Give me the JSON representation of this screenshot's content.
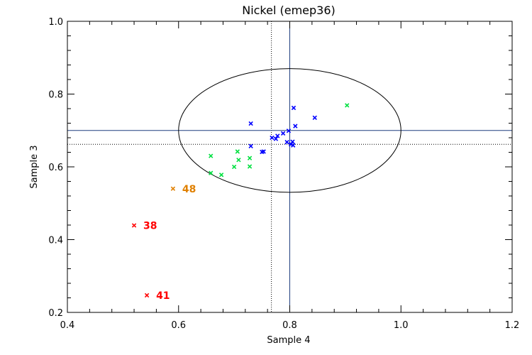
{
  "chart_data": {
    "type": "scatter",
    "title": "Nickel (emep36)",
    "xlabel": "Sample 4",
    "ylabel": "Sample 3",
    "xlim": [
      0.4,
      1.2
    ],
    "ylim": [
      0.2,
      1.0
    ],
    "xticks": [
      "0.4",
      "0.6",
      "0.8",
      "1.0",
      "1.2"
    ],
    "yticks": [
      "0.2",
      "0.4",
      "0.6",
      "0.8",
      "1.0"
    ],
    "xtick_values": [
      0.4,
      0.6,
      0.8,
      1.0,
      1.2
    ],
    "ytick_values": [
      0.2,
      0.4,
      0.6,
      0.8,
      1.0
    ],
    "reference_lines": {
      "solid": {
        "x": 0.8,
        "y": 0.7,
        "color": "#1f3f7f"
      },
      "dotted": {
        "x": 0.767,
        "y": 0.662,
        "color": "#000000"
      }
    },
    "ellipse": {
      "cx": 0.8,
      "cy": 0.7,
      "rx": 0.2,
      "ry": 0.17,
      "color": "#000000"
    },
    "series": [
      {
        "name": "blue",
        "color": "#0000ff",
        "points": [
          [
            0.73,
            0.719
          ],
          [
            0.807,
            0.762
          ],
          [
            0.845,
            0.735
          ],
          [
            0.81,
            0.712
          ],
          [
            0.768,
            0.68
          ],
          [
            0.775,
            0.677
          ],
          [
            0.778,
            0.685
          ],
          [
            0.788,
            0.692
          ],
          [
            0.798,
            0.699
          ],
          [
            0.795,
            0.668
          ],
          [
            0.802,
            0.662
          ],
          [
            0.806,
            0.659
          ],
          [
            0.805,
            0.669
          ],
          [
            0.73,
            0.657
          ],
          [
            0.75,
            0.641
          ],
          [
            0.753,
            0.642
          ]
        ]
      },
      {
        "name": "green",
        "color": "#00e040",
        "points": [
          [
            0.903,
            0.769
          ],
          [
            0.658,
            0.63
          ],
          [
            0.706,
            0.642
          ],
          [
            0.708,
            0.619
          ],
          [
            0.728,
            0.624
          ],
          [
            0.728,
            0.601
          ],
          [
            0.7,
            0.6
          ],
          [
            0.658,
            0.583
          ],
          [
            0.677,
            0.578
          ]
        ]
      },
      {
        "name": "orange",
        "color": "#e08000",
        "points": [
          [
            0.59,
            0.54,
            "48"
          ]
        ]
      },
      {
        "name": "red",
        "color": "#ff0000",
        "points": [
          [
            0.52,
            0.439,
            "38"
          ],
          [
            0.543,
            0.247,
            "41"
          ]
        ]
      }
    ]
  }
}
